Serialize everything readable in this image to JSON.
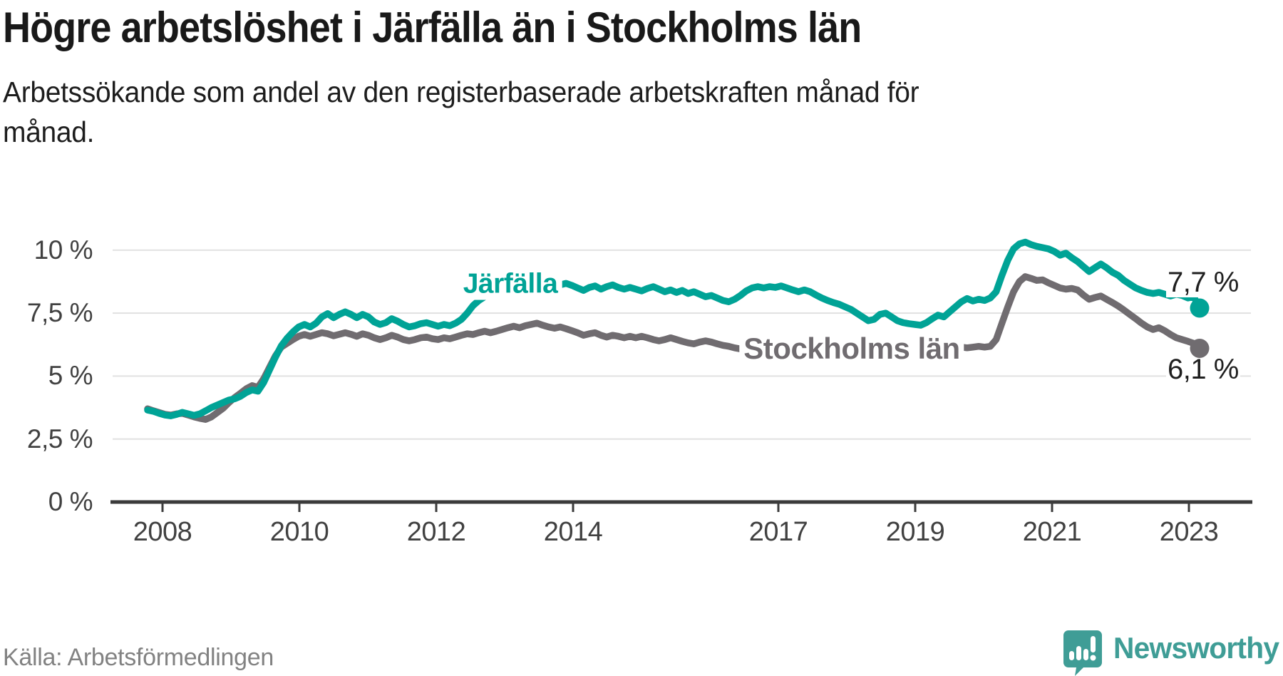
{
  "header": {
    "title": "Högre arbetslöshet i Järfälla än i Stockholms län",
    "subtitle": "Arbetssökande som andel av den registerbaserade arbetskraften månad för månad."
  },
  "chart_data": {
    "type": "line",
    "title": "Högre arbetslöshet i Järfälla än i Stockholms län",
    "subtitle": "Arbetssökande som andel av den registerbaserade arbetskraften månad för månad.",
    "x_start": "2008-01",
    "x_end": "2023-02",
    "x_frequency": "monthly",
    "xlabel": "",
    "ylabel": "",
    "ylim": [
      0,
      10.6
    ],
    "grid": "horizontal",
    "legend_position": "inline-labels",
    "y_ticks": [
      {
        "value": 10,
        "label": "10 %"
      },
      {
        "value": 7.5,
        "label": "7,5 %"
      },
      {
        "value": 5,
        "label": "5 %"
      },
      {
        "value": 2.5,
        "label": "2,5 %"
      },
      {
        "value": 0,
        "label": "0 %"
      }
    ],
    "x_ticks": [
      {
        "year": 2008,
        "label": "2008"
      },
      {
        "year": 2010,
        "label": "2010"
      },
      {
        "year": 2012,
        "label": "2012"
      },
      {
        "year": 2014,
        "label": "2014"
      },
      {
        "year": 2017,
        "label": "2017"
      },
      {
        "year": 2019,
        "label": "2019"
      },
      {
        "year": 2021,
        "label": "2021"
      },
      {
        "year": 2023,
        "label": "2023"
      }
    ],
    "series": [
      {
        "name": "Järfälla",
        "color": "#00a396",
        "end_label": "7,7 %",
        "end_value": 7.7,
        "values": [
          3.65,
          3.6,
          3.52,
          3.45,
          3.42,
          3.48,
          3.56,
          3.5,
          3.44,
          3.5,
          3.62,
          3.75,
          3.85,
          3.95,
          4.05,
          4.1,
          4.2,
          4.35,
          4.45,
          4.4,
          4.75,
          5.25,
          5.75,
          6.2,
          6.5,
          6.75,
          6.95,
          7.05,
          6.95,
          7.1,
          7.35,
          7.48,
          7.32,
          7.45,
          7.55,
          7.45,
          7.32,
          7.45,
          7.35,
          7.15,
          7.05,
          7.12,
          7.28,
          7.18,
          7.05,
          6.95,
          7.0,
          7.08,
          7.12,
          7.05,
          6.98,
          7.05,
          7.0,
          7.1,
          7.25,
          7.5,
          7.8,
          8.0,
          8.15,
          8.3,
          8.45,
          8.55,
          8.65,
          8.6,
          8.7,
          8.78,
          8.7,
          8.62,
          8.7,
          8.62,
          8.55,
          8.62,
          8.68,
          8.6,
          8.5,
          8.4,
          8.52,
          8.58,
          8.45,
          8.55,
          8.62,
          8.52,
          8.45,
          8.52,
          8.45,
          8.38,
          8.48,
          8.55,
          8.45,
          8.35,
          8.42,
          8.32,
          8.4,
          8.28,
          8.35,
          8.25,
          8.15,
          8.2,
          8.1,
          8.0,
          7.95,
          8.05,
          8.2,
          8.38,
          8.5,
          8.55,
          8.5,
          8.55,
          8.52,
          8.58,
          8.5,
          8.42,
          8.35,
          8.42,
          8.35,
          8.22,
          8.1,
          8.0,
          7.92,
          7.85,
          7.75,
          7.65,
          7.5,
          7.35,
          7.2,
          7.25,
          7.45,
          7.5,
          7.35,
          7.2,
          7.12,
          7.08,
          7.05,
          7.02,
          7.12,
          7.28,
          7.42,
          7.35,
          7.55,
          7.75,
          7.95,
          8.08,
          7.98,
          8.05,
          8.0,
          8.1,
          8.35,
          9.0,
          9.6,
          10.05,
          10.25,
          10.32,
          10.22,
          10.15,
          10.1,
          10.05,
          9.95,
          9.8,
          9.88,
          9.7,
          9.55,
          9.35,
          9.15,
          9.3,
          9.45,
          9.3,
          9.12,
          9.0,
          8.8,
          8.65,
          8.5,
          8.4,
          8.32,
          8.28,
          8.32,
          8.25,
          8.18,
          8.25,
          8.2,
          8.1,
          8.15,
          7.7
        ]
      },
      {
        "name": "Stockholms län",
        "color": "#706c70",
        "end_label": "6,1 %",
        "end_value": 6.1,
        "values": [
          3.7,
          3.62,
          3.55,
          3.48,
          3.45,
          3.5,
          3.52,
          3.45,
          3.38,
          3.32,
          3.28,
          3.38,
          3.55,
          3.72,
          3.95,
          4.15,
          4.32,
          4.5,
          4.62,
          4.55,
          4.9,
          5.35,
          5.8,
          6.15,
          6.3,
          6.45,
          6.58,
          6.65,
          6.58,
          6.65,
          6.72,
          6.68,
          6.6,
          6.66,
          6.72,
          6.66,
          6.58,
          6.68,
          6.62,
          6.52,
          6.45,
          6.52,
          6.62,
          6.55,
          6.45,
          6.4,
          6.45,
          6.52,
          6.55,
          6.48,
          6.45,
          6.52,
          6.48,
          6.55,
          6.62,
          6.68,
          6.65,
          6.72,
          6.78,
          6.72,
          6.78,
          6.85,
          6.92,
          6.98,
          6.92,
          7.0,
          7.05,
          7.1,
          7.02,
          6.95,
          6.9,
          6.95,
          6.88,
          6.8,
          6.72,
          6.62,
          6.68,
          6.72,
          6.62,
          6.55,
          6.62,
          6.58,
          6.52,
          6.58,
          6.52,
          6.58,
          6.52,
          6.45,
          6.4,
          6.45,
          6.52,
          6.45,
          6.38,
          6.32,
          6.28,
          6.35,
          6.4,
          6.35,
          6.28,
          6.22,
          6.18,
          6.12,
          6.08,
          6.12,
          6.08,
          6.05,
          6.02,
          6.05,
          6.08,
          6.05,
          6.02,
          5.98,
          6.02,
          6.05,
          6.02,
          5.98,
          5.95,
          5.98,
          6.02,
          6.05,
          6.02,
          5.98,
          5.95,
          5.92,
          5.95,
          5.98,
          5.95,
          5.92,
          5.95,
          5.98,
          6.02,
          6.05,
          6.02,
          6.05,
          6.08,
          6.05,
          6.08,
          6.12,
          6.08,
          6.12,
          6.15,
          6.12,
          6.15,
          6.18,
          6.15,
          6.18,
          6.45,
          7.1,
          7.75,
          8.35,
          8.75,
          8.95,
          8.88,
          8.8,
          8.82,
          8.7,
          8.6,
          8.5,
          8.45,
          8.48,
          8.42,
          8.22,
          8.05,
          8.12,
          8.18,
          8.05,
          7.92,
          7.78,
          7.62,
          7.45,
          7.28,
          7.1,
          6.95,
          6.85,
          6.92,
          6.8,
          6.65,
          6.52,
          6.45,
          6.38,
          6.3,
          6.1
        ]
      }
    ]
  },
  "colors": {
    "jarfalla": "#00a396",
    "stockholm": "#706c70",
    "grid": "#e1e1e1",
    "axis": "#3b3b3b",
    "axis_text": "#414141",
    "title_text": "#191919",
    "source_text": "#828282",
    "brand_teal": "#3f9d96",
    "background": "#ffffff"
  },
  "footer": {
    "source": "Källa: Arbetsförmedlingen",
    "brand": "Newsworthy"
  }
}
